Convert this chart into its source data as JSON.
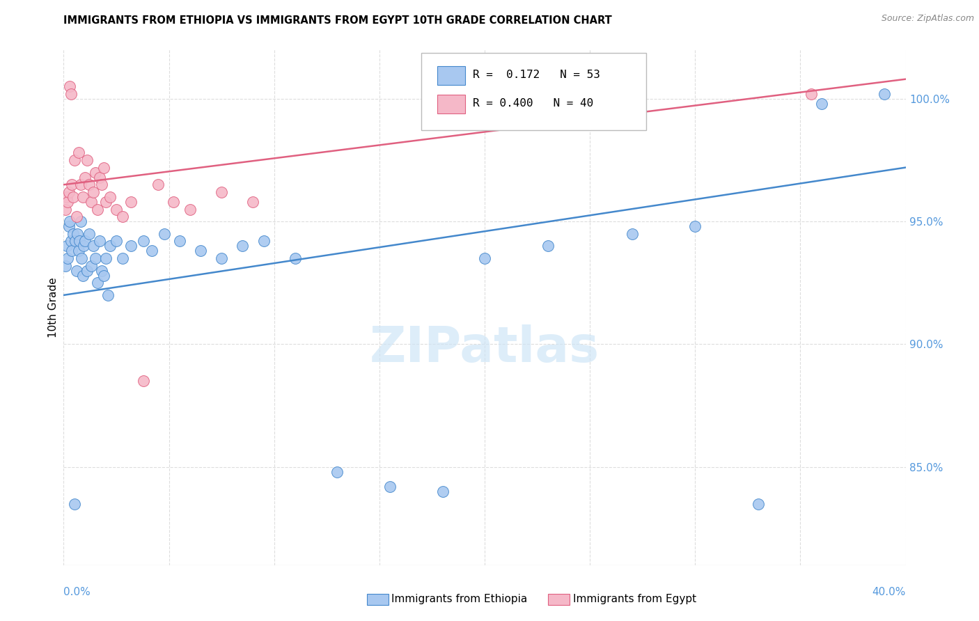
{
  "title": "IMMIGRANTS FROM ETHIOPIA VS IMMIGRANTS FROM EGYPT 10TH GRADE CORRELATION CHART",
  "source": "Source: ZipAtlas.com",
  "ylabel": "10th Grade",
  "xlim": [
    0.0,
    40.0
  ],
  "ylim": [
    81.0,
    102.0
  ],
  "y_ticks": [
    85,
    90,
    95,
    100
  ],
  "y_tick_labels": [
    "85.0%",
    "90.0%",
    "95.0%",
    "100.0%"
  ],
  "color_ethiopia": "#A8C8F0",
  "color_egypt": "#F5B8C8",
  "trendline_ethiopia": "#4488CC",
  "trendline_egypt": "#E06080",
  "watermark": "ZIPatlas",
  "ethiopia_x": [
    0.1,
    0.15,
    0.2,
    0.25,
    0.3,
    0.35,
    0.4,
    0.45,
    0.5,
    0.55,
    0.6,
    0.65,
    0.7,
    0.75,
    0.8,
    0.85,
    0.9,
    0.95,
    1.0,
    1.1,
    1.2,
    1.3,
    1.4,
    1.5,
    1.6,
    1.7,
    1.8,
    1.9,
    2.0,
    2.1,
    2.2,
    2.5,
    2.8,
    3.2,
    3.8,
    4.2,
    4.8,
    5.5,
    6.5,
    7.5,
    8.5,
    9.5,
    11.0,
    13.0,
    15.5,
    18.0,
    20.0,
    23.0,
    27.0,
    30.0,
    33.0,
    36.0,
    39.0
  ],
  "ethiopia_y": [
    93.2,
    94.0,
    93.5,
    94.8,
    95.0,
    94.2,
    93.8,
    94.5,
    83.5,
    94.2,
    93.0,
    94.5,
    93.8,
    94.2,
    95.0,
    93.5,
    92.8,
    94.0,
    94.2,
    93.0,
    94.5,
    93.2,
    94.0,
    93.5,
    92.5,
    94.2,
    93.0,
    92.8,
    93.5,
    92.0,
    94.0,
    94.2,
    93.5,
    94.0,
    94.2,
    93.8,
    94.5,
    94.2,
    93.8,
    93.5,
    94.0,
    94.2,
    93.5,
    84.8,
    84.2,
    84.0,
    93.5,
    94.0,
    94.5,
    94.8,
    83.5,
    99.8,
    100.2
  ],
  "egypt_x": [
    0.1,
    0.15,
    0.2,
    0.25,
    0.3,
    0.35,
    0.4,
    0.45,
    0.5,
    0.6,
    0.7,
    0.8,
    0.9,
    1.0,
    1.1,
    1.2,
    1.3,
    1.4,
    1.5,
    1.6,
    1.7,
    1.8,
    1.9,
    2.0,
    2.2,
    2.5,
    2.8,
    3.2,
    3.8,
    4.5,
    5.2,
    6.0,
    7.5,
    9.0,
    35.5
  ],
  "egypt_y": [
    95.5,
    96.0,
    95.8,
    96.2,
    100.5,
    100.2,
    96.5,
    96.0,
    97.5,
    95.2,
    97.8,
    96.5,
    96.0,
    96.8,
    97.5,
    96.5,
    95.8,
    96.2,
    97.0,
    95.5,
    96.8,
    96.5,
    97.2,
    95.8,
    96.0,
    95.5,
    95.2,
    95.8,
    88.5,
    96.5,
    95.8,
    95.5,
    96.2,
    95.8,
    100.2
  ],
  "eth_trend_x0": 0.0,
  "eth_trend_x1": 40.0,
  "eth_trend_y0": 92.0,
  "eth_trend_y1": 97.2,
  "egy_trend_x0": 0.0,
  "egy_trend_x1": 40.0,
  "egy_trend_y0": 96.5,
  "egy_trend_y1": 100.8
}
